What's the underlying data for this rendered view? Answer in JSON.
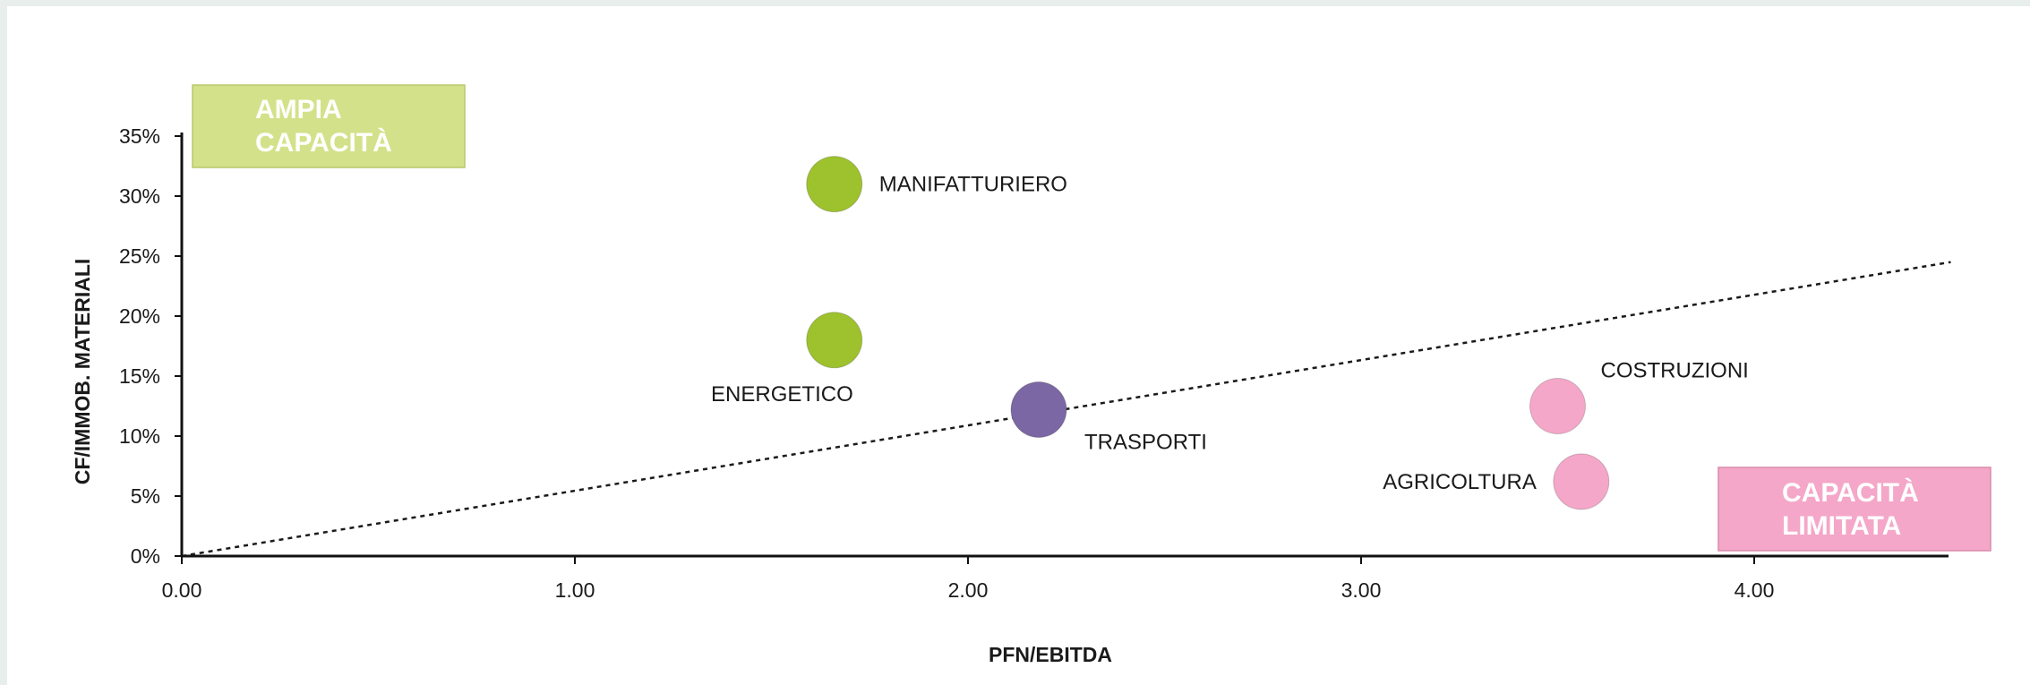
{
  "chart_data": {
    "type": "scatter",
    "xlabel": "PFN/EBITDA",
    "ylabel": "CF/IMMOB. MATERIALI",
    "xlim": [
      0,
      4.5
    ],
    "ylim": [
      0,
      35
    ],
    "x_ticks": [
      "0.00",
      "1.00",
      "2.00",
      "3.00",
      "4.00"
    ],
    "x_tick_values": [
      0,
      1,
      2,
      3,
      4
    ],
    "y_ticks": [
      "0%",
      "5%",
      "10%",
      "15%",
      "20%",
      "25%",
      "30%",
      "35%"
    ],
    "y_tick_values": [
      0,
      5,
      10,
      15,
      20,
      25,
      30,
      35
    ],
    "grid": false,
    "points": [
      {
        "label": "MANIFATTURIERO",
        "x": 1.66,
        "y": 31.0,
        "color": "#9dc22d",
        "label_side": "right"
      },
      {
        "label": "ENERGETICO",
        "x": 1.66,
        "y": 18.0,
        "color": "#9dc22d",
        "label_side": "below-left"
      },
      {
        "label": "TRASPORTI",
        "x": 2.18,
        "y": 12.2,
        "color": "#7a67a3",
        "label_side": "below-right"
      },
      {
        "label": "COSTRUZIONI",
        "x": 3.5,
        "y": 12.5,
        "color": "#f4a7c8",
        "label_side": "above-right"
      },
      {
        "label": "AGRICOLTURA",
        "x": 3.56,
        "y": 6.2,
        "color": "#f4a7c8",
        "label_side": "left"
      }
    ],
    "trendline": {
      "style": "dotted",
      "from": [
        0,
        0
      ],
      "to": [
        4.5,
        24.5
      ]
    },
    "annotations": [
      {
        "text_lines": [
          "AMPIA",
          "CAPACITÀ"
        ],
        "color": "#d3e28a",
        "position": "top-left"
      },
      {
        "text_lines": [
          "CAPACITÀ",
          "LIMITATA"
        ],
        "color": "#f4a7c8",
        "position": "bottom-right"
      }
    ]
  }
}
